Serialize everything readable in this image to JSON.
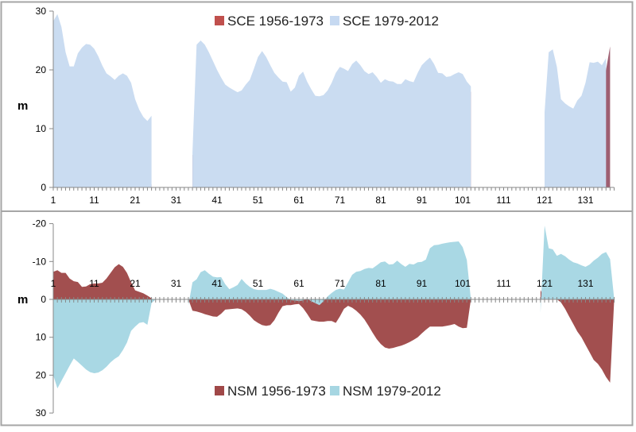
{
  "chart_data": [
    {
      "type": "area",
      "ylabel": "m",
      "ylim": [
        0,
        30
      ],
      "xlim": [
        1,
        138
      ],
      "yticks": [
        "0",
        "10",
        "20",
        "30"
      ],
      "xticks": [
        "1",
        "11",
        "21",
        "31",
        "41",
        "51",
        "61",
        "71",
        "81",
        "91",
        "101",
        "111",
        "121",
        "131"
      ],
      "grid": false,
      "legend_position": "top-center",
      "series": [
        {
          "name": "SCE 1956-1973",
          "color": "#9e5f72",
          "legend_color": "#c0504d",
          "segments": [
            {
              "x_start": 1,
              "values": [
                9.7,
                9.5,
                8.3,
                7.7,
                5.5,
                4.8,
                4.5,
                3.3,
                3.5,
                4.2,
                5.2,
                7.8,
                9.0,
                9.2,
                8.2,
                8.3,
                9.1,
                8.5,
                6.5,
                4.2,
                2.3,
                1.8,
                1.5,
                1.4,
                0.5
              ]
            },
            {
              "x_start": 35,
              "values": [
                5.5,
                6.1,
                6.1,
                6.0,
                6.1,
                6.4,
                6.6,
                5.8,
                4.0,
                2.7,
                3.2,
                4.8,
                5.8,
                5.4,
                5.0,
                6.0,
                6.6,
                7.2,
                7.2,
                7.1,
                6.0,
                4.6,
                5.0,
                4.9,
                4.1,
                3.7,
                1.6,
                2.5,
                4.0,
                6.3,
                5.9,
                5.6,
                5.5,
                5.8,
                6.3,
                6.6,
                6.0,
                4.8,
                5.6,
                6.6,
                6.8,
                7.6,
                8.5,
                9.5,
                10.5,
                10.6,
                11.7,
                12.5,
                13.0,
                12.9,
                12.7,
                12.4,
                12.1,
                11.7,
                11.2,
                10.6,
                9.8,
                8.6,
                7.5,
                7.2,
                7.2,
                7.2,
                7.3,
                7.1,
                7.6,
                9.8,
                13.8,
                15.5,
                16.3
              ]
            },
            {
              "x_start": 121,
              "values": [
                12.5,
                12.6,
                13.1,
                11.2,
                8.2,
                4.8,
                3.5,
                7.5,
                7.8,
                9.0,
                10.6,
                13.2,
                15.5,
                16.8,
                17.5,
                20.0,
                24.0
              ]
            }
          ]
        },
        {
          "name": "SCE 1979-2012",
          "color": "#cadcf1",
          "legend_color": "#c6d9f1",
          "segments": [
            {
              "x_start": 1,
              "values": [
                28.3,
                29.5,
                27.3,
                23.0,
                20.6,
                20.6,
                22.8,
                23.8,
                24.4,
                24.3,
                23.6,
                22.3,
                20.7,
                19.4,
                18.9,
                18.3,
                19.0,
                19.4,
                19.0,
                17.8,
                15.0,
                13.2,
                12.0,
                11.3,
                12.2
              ]
            },
            {
              "x_start": 35,
              "values": [
                6.0,
                24.3,
                25.0,
                24.3,
                23.0,
                21.5,
                20.0,
                18.7,
                17.5,
                17.0,
                16.6,
                16.2,
                16.5,
                17.5,
                18.3,
                20.2,
                22.2,
                23.2,
                22.2,
                20.8,
                19.5,
                18.7,
                18.0,
                17.9,
                16.3,
                17.0,
                19.0,
                19.7,
                18.0,
                16.7,
                15.6,
                15.5,
                15.7,
                16.5,
                17.8,
                19.5,
                20.5,
                20.2,
                19.8,
                21.0,
                21.6,
                20.8,
                19.8,
                19.3,
                19.6,
                18.8,
                17.8,
                18.4,
                18.1,
                18.0,
                17.6,
                17.6,
                18.4,
                18.1,
                17.9,
                19.5,
                20.8,
                21.5,
                22.1,
                21.0,
                19.5,
                19.4,
                18.8,
                18.9,
                19.3,
                19.6,
                19.3,
                18.0,
                17.2
              ]
            },
            {
              "x_start": 121,
              "values": [
                12.8,
                23.0,
                23.5,
                20.5,
                15.0,
                14.3,
                13.8,
                13.4,
                14.8,
                15.6,
                17.8,
                21.3,
                21.2,
                21.4,
                20.8,
                22.0
              ]
            }
          ]
        }
      ]
    },
    {
      "type": "area",
      "ylabel": "m",
      "ylim": [
        30,
        -20
      ],
      "y_axis_inverted": true,
      "xlim": [
        1,
        138
      ],
      "yticks": [
        "-20",
        "-10",
        "0",
        "10",
        "20",
        "30"
      ],
      "xticks": [
        "1",
        "11",
        "21",
        "31",
        "41",
        "51",
        "61",
        "71",
        "81",
        "91",
        "101",
        "111",
        "121",
        "131"
      ],
      "grid": false,
      "legend_position": "bottom-center",
      "series": [
        {
          "name": "NSM 1956-1973",
          "color": "#a24f4f",
          "legend_color": "#a04848",
          "segments": [
            {
              "x_start": 1,
              "values": [
                -7.3,
                -7.7,
                -7.0,
                -7.0,
                -5.5,
                -4.8,
                -4.6,
                -3.3,
                -3.4,
                -4.0,
                -4.2,
                -4.2,
                -4.4,
                -5.5,
                -7.0,
                -8.5,
                -9.3,
                -8.6,
                -7.0,
                -4.5,
                -2.4,
                -2.0,
                -1.6,
                -1.0,
                -0.3
              ]
            },
            {
              "x_start": 34,
              "values": [
                0,
                3.0,
                3.2,
                3.5,
                3.9,
                4.2,
                4.5,
                4.6,
                3.8,
                2.7,
                2.6,
                2.5,
                2.4,
                2.6,
                3.3,
                4.3,
                5.5,
                6.2,
                6.8,
                7.0,
                6.8,
                5.5,
                3.5,
                1.8,
                1.5,
                1.5,
                1.3,
                1.2,
                2.3,
                3.8,
                5.5,
                5.7,
                5.9,
                5.9,
                5.7,
                5.7,
                6.2,
                4.5,
                2.5,
                1.7,
                2.2,
                3.0,
                4.0,
                5.3,
                7.0,
                8.8,
                10.5,
                11.8,
                12.7,
                13.0,
                12.8,
                12.5,
                12.2,
                11.8,
                11.3,
                10.7,
                10.0,
                9.0,
                8.0,
                7.2,
                7.2,
                7.2,
                7.2,
                7.0,
                6.8,
                6.5,
                7.2,
                7.6,
                7.5,
                0
              ]
            },
            {
              "x_start": 120,
              "values": [
                -2.5,
                0,
                0,
                0,
                0,
                0.8,
                2.5,
                4.5,
                6.5,
                8.5,
                10.0,
                12.0,
                14.0,
                16.0,
                17.0,
                18.5,
                20.5,
                22.0,
                0
              ]
            }
          ]
        },
        {
          "name": "NSM 1979-2012",
          "color": "#a9d8e4",
          "legend_color": "#a6d6e2",
          "segments": [
            {
              "x_start": 1,
              "values": [
                20.0,
                23.5,
                21.5,
                19.5,
                17.5,
                15.6,
                16.5,
                17.5,
                18.5,
                19.2,
                19.5,
                19.3,
                18.7,
                17.8,
                16.6,
                15.7,
                15.0,
                13.4,
                11.4,
                8.3,
                7.2,
                6.2,
                6.0,
                6.7,
                1.0,
                0
              ]
            },
            {
              "x_start": 34,
              "values": [
                1.5,
                -4.5,
                -5.3,
                -7.2,
                -7.7,
                -6.8,
                -6.0,
                -5.8,
                -5.9,
                -4.0,
                -2.7,
                -3.2,
                -3.8,
                -5.4,
                -4.2,
                -3.3,
                -2.7,
                -2.5,
                -2.5,
                -2.5,
                -2.8,
                -2.5,
                -2.0,
                -1.5,
                -0.6,
                0.2,
                0.3,
                0.4,
                0.3,
                -0.2,
                0.5,
                1.0,
                1.5,
                0.5,
                -0.8,
                -1.7,
                -2.5,
                -2.8,
                -2.6,
                -4.5,
                -6.5,
                -7.3,
                -7.5,
                -8.0,
                -8.3,
                -8.2,
                -9.0,
                -9.8,
                -10.0,
                -9.2,
                -9.3,
                -10.2,
                -9.3,
                -8.6,
                -9.4,
                -9.2,
                -9.8,
                -9.9,
                -10.5,
                -13.5,
                -14.3,
                -14.4,
                -14.7,
                -14.9,
                -15.1,
                -15.2,
                -15.3,
                -13.8,
                -10.4,
                0
              ]
            },
            {
              "x_start": 120,
              "values": [
                3.5,
                -19.5,
                -13.5,
                -13.2,
                -11.5,
                -12.0,
                -11.4,
                -10.5,
                -9.8,
                -9.5,
                -9.0,
                -8.6,
                -9.2,
                -10.2,
                -11.0,
                -12.0,
                -12.5,
                -10.6,
                0
              ]
            }
          ]
        }
      ]
    }
  ]
}
